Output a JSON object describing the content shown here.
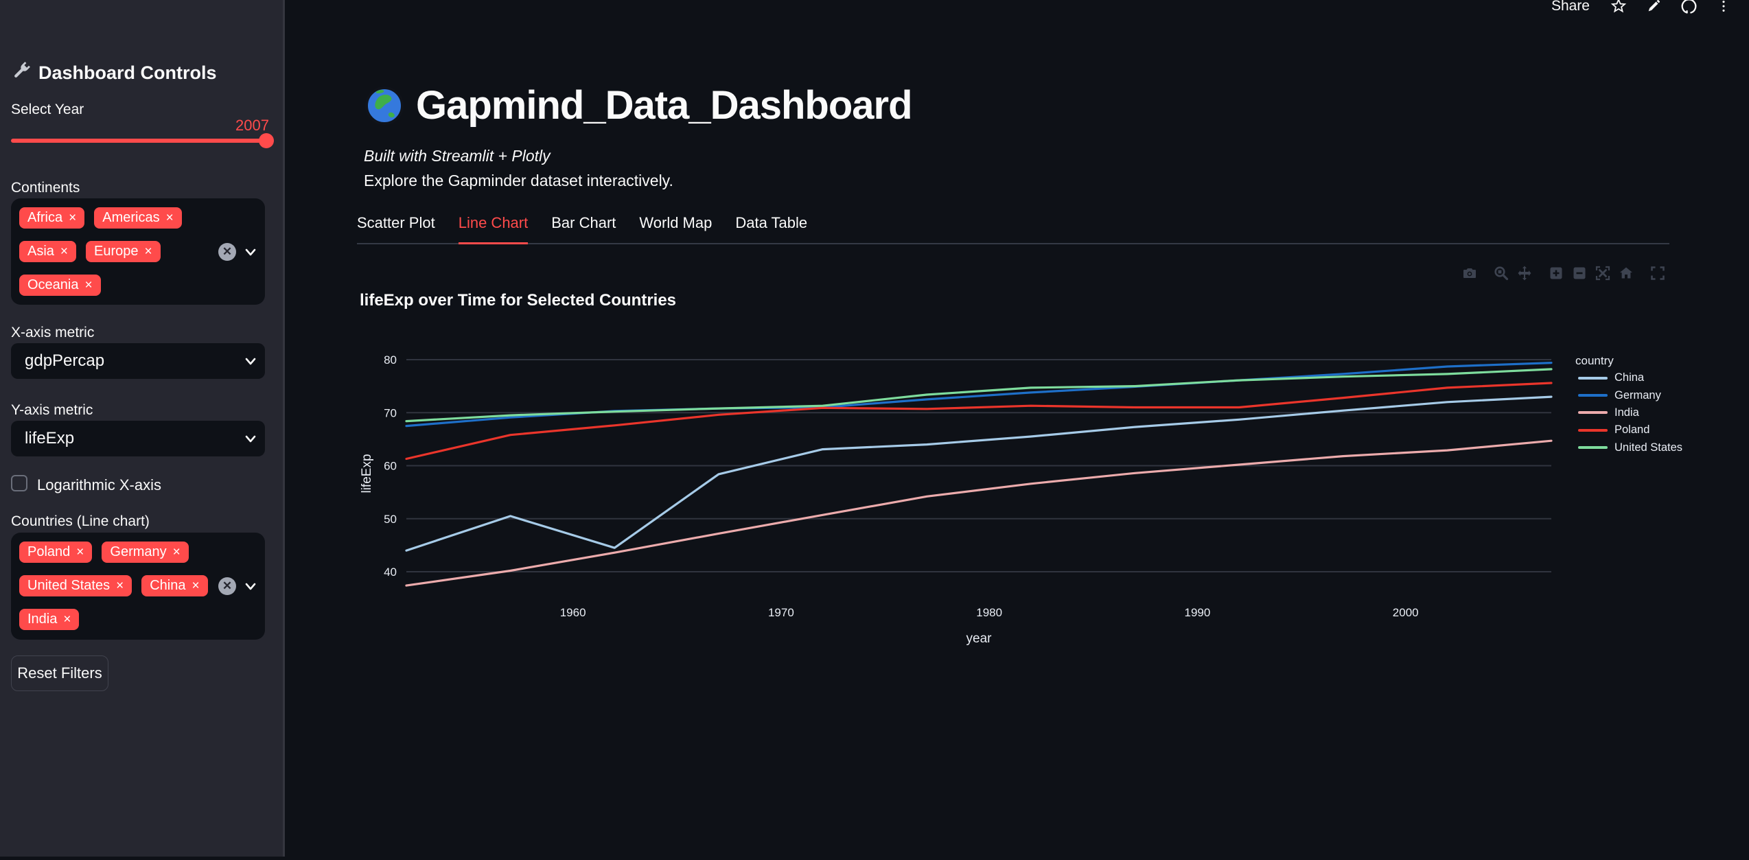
{
  "app": {
    "background": "#0e1117",
    "sidebar_background": "#262730",
    "accent": "#ff4b4b"
  },
  "header": {
    "share_label": "Share",
    "icons": [
      "star-icon",
      "pencil-icon",
      "github-icon",
      "menu-icon"
    ]
  },
  "sidebar": {
    "icon": "wrench-icon",
    "title": "Dashboard Controls",
    "year_slider": {
      "label": "Select Year",
      "value": "2007"
    },
    "continents": {
      "label": "Continents",
      "tags": [
        "Africa",
        "Americas",
        "Asia",
        "Europe",
        "Oceania"
      ]
    },
    "x_metric": {
      "label": "X-axis metric",
      "value": "gdpPercap"
    },
    "y_metric": {
      "label": "Y-axis metric",
      "value": "lifeExp"
    },
    "log_x": {
      "label": "Logarithmic X-axis",
      "checked": false
    },
    "countries": {
      "label": "Countries (Line chart)",
      "tags": [
        "Poland",
        "Germany",
        "United States",
        "China",
        "India"
      ]
    },
    "reset_label": "Reset Filters"
  },
  "main": {
    "icon": "globe-icon",
    "title": "Gapmind_Data_Dashboard",
    "subtitle": "Built with Streamlit + Plotly",
    "description": "Explore the Gapminder dataset interactively.",
    "tabs": [
      {
        "label": "Scatter Plot",
        "active": false
      },
      {
        "label": "Line Chart",
        "active": true
      },
      {
        "label": "Bar Chart",
        "active": false
      },
      {
        "label": "World Map",
        "active": false
      },
      {
        "label": "Data Table",
        "active": false
      }
    ],
    "modebar_icons": [
      "camera-icon",
      "zoom-icon",
      "pan-icon",
      "zoom-in-icon",
      "zoom-out-icon",
      "autoscale-icon",
      "reset-axes-icon",
      "fullscreen-icon"
    ]
  },
  "chart_data": {
    "type": "line",
    "title": "lifeExp over Time for Selected Countries",
    "xlabel": "year",
    "ylabel": "lifeExp",
    "legend_title": "country",
    "x": [
      1952,
      1957,
      1962,
      1967,
      1972,
      1977,
      1982,
      1987,
      1992,
      1997,
      2002,
      2007
    ],
    "series": [
      {
        "name": "China",
        "color": "#a6cbe8",
        "values": [
          44.0,
          50.5,
          44.5,
          58.4,
          63.1,
          64.0,
          65.5,
          67.3,
          68.7,
          70.4,
          72.0,
          73.0
        ]
      },
      {
        "name": "Germany",
        "color": "#1e6fc8",
        "values": [
          67.5,
          69.1,
          70.3,
          70.8,
          71.0,
          72.5,
          73.8,
          74.9,
          76.1,
          77.3,
          78.7,
          79.4
        ]
      },
      {
        "name": "India",
        "color": "#ecabac",
        "values": [
          37.4,
          40.2,
          43.6,
          47.2,
          50.7,
          54.2,
          56.6,
          58.6,
          60.2,
          61.8,
          62.9,
          64.7
        ]
      },
      {
        "name": "Poland",
        "color": "#ea352b",
        "values": [
          61.3,
          65.8,
          67.6,
          69.6,
          70.9,
          70.7,
          71.3,
          71.0,
          71.0,
          72.8,
          74.7,
          75.6
        ]
      },
      {
        "name": "United States",
        "color": "#7edc9d",
        "values": [
          68.4,
          69.5,
          70.2,
          70.8,
          71.3,
          73.4,
          74.7,
          75.0,
          76.1,
          76.8,
          77.3,
          78.2
        ]
      }
    ],
    "xticks": [
      1960,
      1970,
      1980,
      1990,
      2000
    ],
    "yticks": [
      40,
      50,
      60,
      70,
      80
    ],
    "xlim": [
      1952,
      2007
    ],
    "ylim": [
      34.7,
      82.1
    ],
    "grid": "horizontal-only",
    "legend_position": "right"
  }
}
